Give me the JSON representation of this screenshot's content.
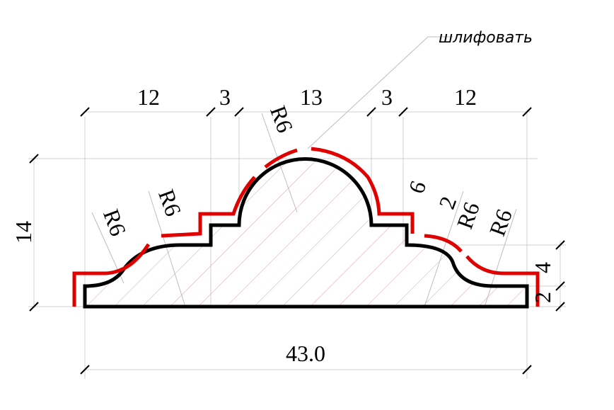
{
  "labels": {
    "grind_note": "шлифовать",
    "top_dims": [
      "12",
      "3",
      "13",
      "3",
      "12"
    ],
    "overall_width": "43.0",
    "overall_height": "14",
    "right_dims": [
      "4",
      "2"
    ],
    "inner_dims": [
      "6",
      "2"
    ],
    "radius": "R6"
  },
  "colors": {
    "profile": "#000000",
    "grind_line": "#e00000",
    "hatch": "#e3a0a0",
    "extension": "#cfcfcf"
  }
}
